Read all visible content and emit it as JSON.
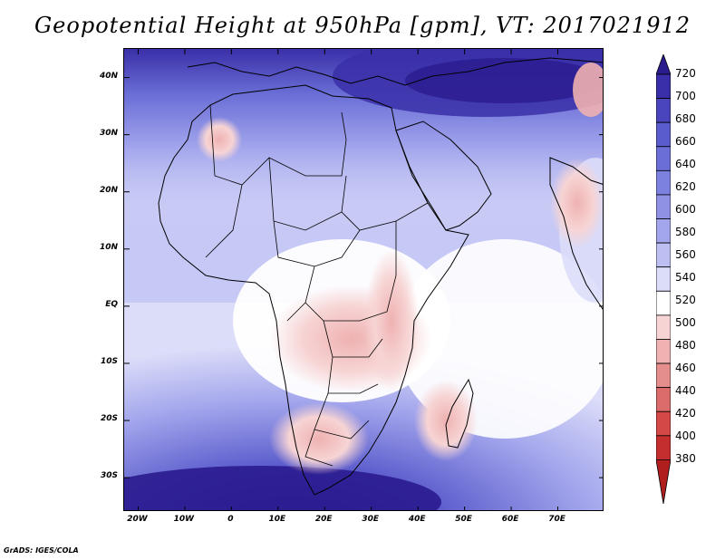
{
  "title": "Geopotential Height at 950hPa [gpm], VT: 2017021912",
  "credit": "GrADS: IGES/COLA",
  "map": {
    "region": "Africa",
    "lon_range": [
      -23,
      80
    ],
    "lat_range": [
      -36,
      45
    ],
    "lat_labels": [
      "40N",
      "30N",
      "20N",
      "10N",
      "EQ",
      "10S",
      "20S",
      "30S"
    ],
    "lat_values": [
      40,
      30,
      20,
      10,
      0,
      -10,
      -20,
      -30
    ],
    "lon_labels": [
      "20W",
      "10W",
      "0",
      "10E",
      "20E",
      "30E",
      "40E",
      "50E",
      "60E",
      "70E"
    ],
    "lon_values": [
      -20,
      -10,
      0,
      10,
      20,
      30,
      40,
      50,
      60,
      70
    ]
  },
  "colorbar": {
    "labels": [
      "720",
      "700",
      "680",
      "660",
      "640",
      "620",
      "600",
      "580",
      "560",
      "540",
      "520",
      "500",
      "480",
      "460",
      "440",
      "420",
      "400",
      "380"
    ],
    "colors": [
      "#2a1b8f",
      "#3a2fa8",
      "#4a45bd",
      "#5a5bcc",
      "#6a6ed6",
      "#7c80de",
      "#8f92e4",
      "#a3a6ec",
      "#bdbff3",
      "#dcddf9",
      "#ffffff",
      "#f7d4d4",
      "#efb1b1",
      "#e58e8e",
      "#dc6b6b",
      "#d44848",
      "#c52e2e",
      "#b01e1e"
    ]
  }
}
